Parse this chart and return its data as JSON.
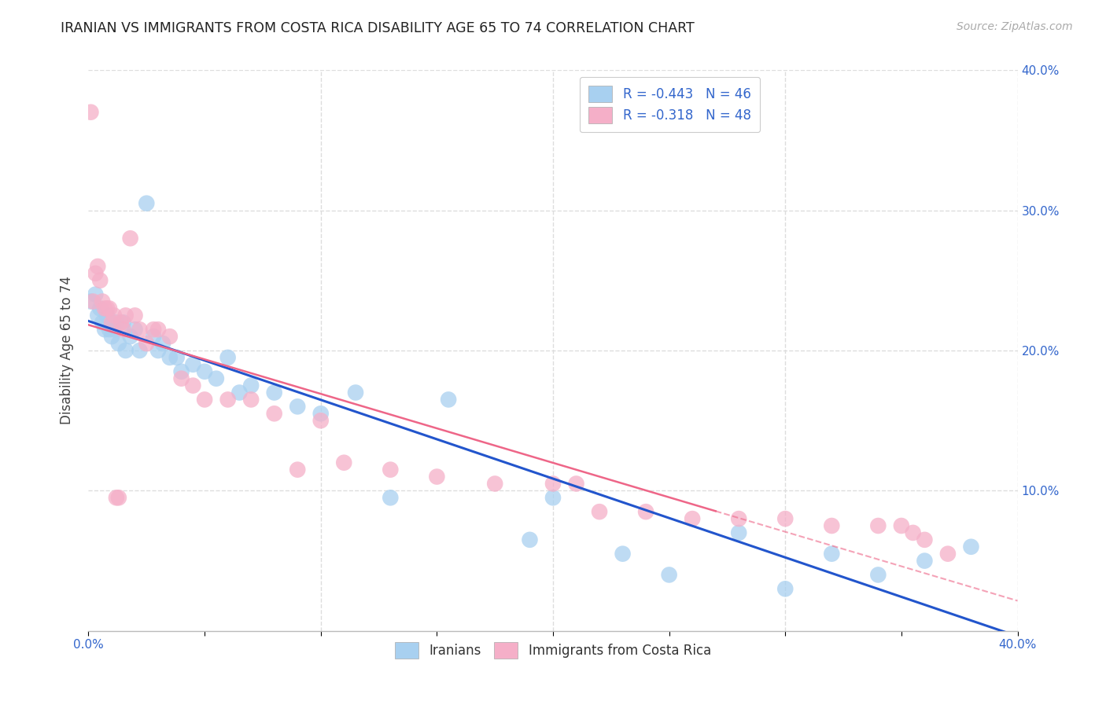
{
  "title": "IRANIAN VS IMMIGRANTS FROM COSTA RICA DISABILITY AGE 65 TO 74 CORRELATION CHART",
  "source": "Source: ZipAtlas.com",
  "ylabel": "Disability Age 65 to 74",
  "legend_label1": "Iranians",
  "legend_label2": "Immigrants from Costa Rica",
  "r1": -0.443,
  "n1": 46,
  "r2": -0.318,
  "n2": 48,
  "color1": "#a8d0f0",
  "color2": "#f5afc8",
  "line_color1": "#2255cc",
  "line_color2": "#ee6688",
  "xlim": [
    0.0,
    0.4
  ],
  "ylim": [
    0.0,
    0.4
  ],
  "yticks": [
    0.1,
    0.2,
    0.3,
    0.4
  ],
  "xticks": [
    0.0,
    0.05,
    0.1,
    0.15,
    0.2,
    0.25,
    0.3,
    0.35,
    0.4
  ],
  "background_color": "#ffffff",
  "grid_color": "#dddddd",
  "iranians_x": [
    0.001,
    0.003,
    0.004,
    0.005,
    0.006,
    0.007,
    0.008,
    0.009,
    0.01,
    0.011,
    0.012,
    0.013,
    0.015,
    0.016,
    0.018,
    0.02,
    0.022,
    0.025,
    0.028,
    0.03,
    0.032,
    0.035,
    0.038,
    0.04,
    0.045,
    0.05,
    0.055,
    0.06,
    0.065,
    0.07,
    0.08,
    0.09,
    0.1,
    0.115,
    0.13,
    0.155,
    0.19,
    0.2,
    0.23,
    0.25,
    0.28,
    0.3,
    0.32,
    0.34,
    0.36,
    0.38
  ],
  "iranians_y": [
    0.235,
    0.24,
    0.225,
    0.23,
    0.22,
    0.215,
    0.225,
    0.215,
    0.21,
    0.215,
    0.22,
    0.205,
    0.22,
    0.2,
    0.21,
    0.215,
    0.2,
    0.305,
    0.21,
    0.2,
    0.205,
    0.195,
    0.195,
    0.185,
    0.19,
    0.185,
    0.18,
    0.195,
    0.17,
    0.175,
    0.17,
    0.16,
    0.155,
    0.17,
    0.095,
    0.165,
    0.065,
    0.095,
    0.055,
    0.04,
    0.07,
    0.03,
    0.055,
    0.04,
    0.05,
    0.06
  ],
  "costarica_x": [
    0.001,
    0.002,
    0.003,
    0.004,
    0.005,
    0.006,
    0.007,
    0.008,
    0.009,
    0.01,
    0.011,
    0.012,
    0.013,
    0.014,
    0.015,
    0.016,
    0.018,
    0.02,
    0.022,
    0.025,
    0.028,
    0.03,
    0.035,
    0.04,
    0.045,
    0.05,
    0.06,
    0.07,
    0.08,
    0.09,
    0.1,
    0.11,
    0.13,
    0.15,
    0.175,
    0.2,
    0.21,
    0.22,
    0.24,
    0.26,
    0.28,
    0.3,
    0.32,
    0.34,
    0.35,
    0.355,
    0.36,
    0.37
  ],
  "costarica_y": [
    0.37,
    0.235,
    0.255,
    0.26,
    0.25,
    0.235,
    0.23,
    0.23,
    0.23,
    0.22,
    0.225,
    0.095,
    0.095,
    0.22,
    0.215,
    0.225,
    0.28,
    0.225,
    0.215,
    0.205,
    0.215,
    0.215,
    0.21,
    0.18,
    0.175,
    0.165,
    0.165,
    0.165,
    0.155,
    0.115,
    0.15,
    0.12,
    0.115,
    0.11,
    0.105,
    0.105,
    0.105,
    0.085,
    0.085,
    0.08,
    0.08,
    0.08,
    0.075,
    0.075,
    0.075,
    0.07,
    0.065,
    0.055
  ]
}
